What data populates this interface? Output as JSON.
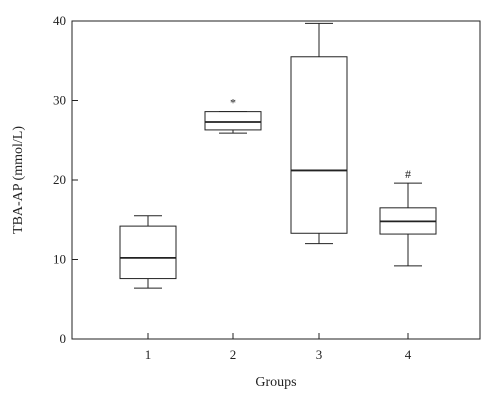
{
  "chart_data": {
    "type": "boxplot",
    "title": "",
    "xlabel": "Groups",
    "ylabel": "TBA-AP (mmol/L)",
    "ylim": [
      0,
      40
    ],
    "yticks": [
      0,
      10,
      20,
      30,
      40
    ],
    "categories": [
      "1",
      "2",
      "3",
      "4"
    ],
    "boxes": [
      {
        "category": "1",
        "whisker_low": 6.4,
        "q1": 7.6,
        "median": 10.2,
        "q3": 14.2,
        "whisker_high": 15.5,
        "annotation": ""
      },
      {
        "category": "2",
        "whisker_low": 25.9,
        "q1": 26.3,
        "median": 27.3,
        "q3": 28.6,
        "whisker_high": 28.6,
        "annotation": "*"
      },
      {
        "category": "3",
        "whisker_low": 12.0,
        "q1": 13.3,
        "median": 21.2,
        "q3": 35.5,
        "whisker_high": 39.7,
        "annotation": ""
      },
      {
        "category": "4",
        "whisker_low": 9.2,
        "q1": 13.2,
        "median": 14.8,
        "q3": 16.5,
        "whisker_high": 19.6,
        "annotation": "#"
      }
    ],
    "grid": false,
    "colors": {
      "line": "#222222",
      "box_fill": "#ffffff"
    }
  }
}
